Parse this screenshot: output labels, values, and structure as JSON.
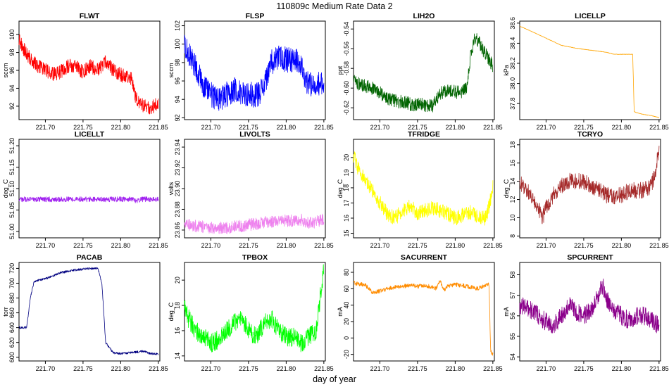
{
  "suptitle": "110809c   Medium Rate Data 2",
  "xlabel": "day of year",
  "chart_data": [
    {
      "type": "line",
      "title": "FLWT",
      "ylabel": "sccm",
      "color": "#ff0000",
      "xlim": [
        221.665,
        221.852
      ],
      "ylim": [
        90.5,
        101.5
      ],
      "xticks": [
        "221.70",
        "221.75",
        "221.80",
        "221.85"
      ],
      "yticks": [
        "92",
        "94",
        "96",
        "98",
        "100"
      ],
      "x": [
        221.665,
        221.67,
        221.68,
        221.69,
        221.7,
        221.71,
        221.72,
        221.73,
        221.74,
        221.75,
        221.76,
        221.77,
        221.78,
        221.79,
        221.8,
        221.81,
        221.815,
        221.82,
        221.825,
        221.83,
        221.84,
        221.85
      ],
      "y": [
        99.5,
        98.5,
        97.3,
        96.5,
        96.0,
        95.6,
        95.8,
        96.5,
        96.5,
        95.8,
        96.5,
        96.0,
        97.0,
        96.0,
        95.5,
        95.2,
        95.0,
        93.0,
        92.3,
        92.0,
        91.7,
        92.5
      ],
      "noise": 1.6
    },
    {
      "type": "line",
      "title": "FLSP",
      "ylabel": "sccm",
      "color": "#0000ff",
      "xlim": [
        221.665,
        221.852
      ],
      "ylim": [
        91.8,
        102.5
      ],
      "xticks": [
        "221.70",
        "221.75",
        "221.80",
        "221.85"
      ],
      "yticks": [
        "92",
        "94",
        "96",
        "98",
        "100",
        "102"
      ],
      "x": [
        221.665,
        221.67,
        221.68,
        221.69,
        221.7,
        221.71,
        221.72,
        221.73,
        221.74,
        221.75,
        221.76,
        221.77,
        221.775,
        221.78,
        221.79,
        221.8,
        221.81,
        221.82,
        221.825,
        221.83,
        221.84,
        221.85
      ],
      "y": [
        100.0,
        99.0,
        97.5,
        95.5,
        94.5,
        94.0,
        94.5,
        95.0,
        94.8,
        94.5,
        94.5,
        95.0,
        96.5,
        98.0,
        98.5,
        98.3,
        98.4,
        98.0,
        96.0,
        95.5,
        95.5,
        96.0
      ],
      "noise": 2.8
    },
    {
      "type": "line",
      "title": "LIH2O",
      "ylabel": "ppt",
      "color": "#006400",
      "xlim": [
        221.665,
        221.852
      ],
      "ylim": [
        -0.632,
        -0.532
      ],
      "xticks": [
        "221.70",
        "221.75",
        "221.80",
        "221.85"
      ],
      "yticks": [
        "-0.62",
        "-0.60",
        "-0.58",
        "-0.56",
        "-0.54"
      ],
      "x": [
        221.665,
        221.67,
        221.68,
        221.69,
        221.7,
        221.71,
        221.72,
        221.73,
        221.74,
        221.75,
        221.76,
        221.77,
        221.78,
        221.79,
        221.8,
        221.81,
        221.815,
        221.82,
        221.825,
        221.83,
        221.84,
        221.85
      ],
      "y": [
        -0.59,
        -0.595,
        -0.598,
        -0.6,
        -0.605,
        -0.61,
        -0.613,
        -0.614,
        -0.616,
        -0.617,
        -0.617,
        -0.618,
        -0.605,
        -0.603,
        -0.604,
        -0.603,
        -0.6,
        -0.57,
        -0.55,
        -0.552,
        -0.565,
        -0.578
      ],
      "noise": 0.014
    },
    {
      "type": "line",
      "title": "LICELLP",
      "ylabel": "kPa",
      "color": "#ffa500",
      "xlim": [
        221.665,
        221.852
      ],
      "ylim": [
        37.64,
        38.62
      ],
      "xticks": [
        "221.70",
        "221.75",
        "221.80",
        "221.85"
      ],
      "yticks": [
        "37.8",
        "38.0",
        "38.2",
        "38.4",
        "38.6"
      ],
      "x": [
        221.665,
        221.68,
        221.7,
        221.72,
        221.74,
        221.76,
        221.78,
        221.79,
        221.8,
        221.815,
        221.817,
        221.82,
        221.83,
        221.84,
        221.85
      ],
      "y": [
        38.57,
        38.52,
        38.45,
        38.38,
        38.35,
        38.33,
        38.31,
        38.29,
        38.29,
        38.29,
        37.72,
        37.71,
        37.69,
        37.68,
        37.66
      ],
      "noise": 0.004
    },
    {
      "type": "line",
      "title": "LICELLT",
      "ylabel": "deg_C",
      "color": "#a020f0",
      "xlim": [
        221.665,
        221.852
      ],
      "ylim": [
        50.985,
        51.215
      ],
      "xticks": [
        "221.70",
        "221.75",
        "221.80",
        "221.85"
      ],
      "yticks": [
        "51.00",
        "51.05",
        "51.10",
        "51.15",
        "51.20"
      ],
      "x": [
        221.665,
        221.7,
        221.75,
        221.8,
        221.815,
        221.82,
        221.83,
        221.85
      ],
      "y": [
        51.075,
        51.075,
        51.075,
        51.075,
        51.075,
        51.072,
        51.075,
        51.075
      ],
      "noise": 0.012
    },
    {
      "type": "line",
      "title": "LIVOLTS",
      "ylabel": "volts",
      "color": "#ee82ee",
      "xlim": [
        221.665,
        221.852
      ],
      "ylim": [
        23.8525,
        23.9475
      ],
      "xticks": [
        "221.70",
        "221.75",
        "221.80",
        "221.85"
      ],
      "yticks": [
        "23.86",
        "23.88",
        "23.90",
        "23.92",
        "23.94"
      ],
      "x": [
        221.665,
        221.68,
        221.7,
        221.72,
        221.74,
        221.76,
        221.78,
        221.8,
        221.82,
        221.83,
        221.84,
        221.85
      ],
      "y": [
        23.866,
        23.864,
        23.862,
        23.862,
        23.864,
        23.866,
        23.868,
        23.869,
        23.87,
        23.866,
        23.868,
        23.87
      ],
      "noise": 0.012
    },
    {
      "type": "line",
      "title": "TFRIDGE",
      "ylabel": "deg_C",
      "color": "#ffff00",
      "xlim": [
        221.665,
        221.852
      ],
      "ylim": [
        14.7,
        21.2
      ],
      "xticks": [
        "221.70",
        "221.75",
        "221.80",
        "221.85"
      ],
      "yticks": [
        "15",
        "16",
        "17",
        "18",
        "19",
        "20"
      ],
      "x": [
        221.665,
        221.67,
        221.68,
        221.69,
        221.7,
        221.71,
        221.72,
        221.73,
        221.74,
        221.75,
        221.76,
        221.77,
        221.78,
        221.79,
        221.8,
        221.81,
        221.82,
        221.83,
        221.84,
        221.845,
        221.85
      ],
      "y": [
        20.2,
        19.4,
        18.5,
        17.8,
        17.0,
        16.3,
        16.0,
        16.5,
        16.8,
        16.3,
        16.5,
        16.7,
        16.5,
        16.3,
        16.0,
        16.2,
        16.4,
        16.0,
        16.0,
        16.8,
        18.0
      ],
      "noise": 1.0
    },
    {
      "type": "line",
      "title": "TCRYO",
      "ylabel": "deg_C",
      "color": "#a52a2a",
      "xlim": [
        221.665,
        221.852
      ],
      "ylim": [
        7.8,
        18.6
      ],
      "xticks": [
        "221.70",
        "221.75",
        "221.80",
        "221.85"
      ],
      "yticks": [
        "8",
        "10",
        "12",
        "14",
        "16",
        "18"
      ],
      "x": [
        221.665,
        221.67,
        221.68,
        221.69,
        221.695,
        221.7,
        221.71,
        221.72,
        221.73,
        221.74,
        221.75,
        221.76,
        221.77,
        221.78,
        221.79,
        221.8,
        221.81,
        221.82,
        221.83,
        221.84,
        221.845,
        221.85
      ],
      "y": [
        14.0,
        13.2,
        12.5,
        11.0,
        10.0,
        11.0,
        12.5,
        13.5,
        14.0,
        14.0,
        14.0,
        13.5,
        13.0,
        12.5,
        12.3,
        12.5,
        13.0,
        13.0,
        13.0,
        13.5,
        15.0,
        17.5
      ],
      "noise": 1.8
    },
    {
      "type": "line",
      "title": "PACAB",
      "ylabel": "torr",
      "color": "#000080",
      "xlim": [
        221.665,
        221.852
      ],
      "ylim": [
        595,
        728
      ],
      "xticks": [
        "221.70",
        "221.75",
        "221.80",
        "221.85"
      ],
      "yticks": [
        "600",
        "620",
        "640",
        "660",
        "680",
        "700",
        "720"
      ],
      "x": [
        221.665,
        221.675,
        221.677,
        221.68,
        221.685,
        221.69,
        221.7,
        221.71,
        221.72,
        221.73,
        221.74,
        221.75,
        221.76,
        221.77,
        221.775,
        221.78,
        221.79,
        221.8,
        221.81,
        221.82,
        221.83,
        221.84,
        221.85
      ],
      "y": [
        640,
        640,
        655,
        680,
        702,
        704,
        706,
        710,
        714,
        716,
        718,
        719,
        720,
        720,
        700,
        620,
        606,
        605,
        606,
        607,
        608,
        605,
        604
      ],
      "noise": 3.0
    },
    {
      "type": "line",
      "title": "TPBOX",
      "ylabel": "deg_C",
      "color": "#00ff00",
      "xlim": [
        221.665,
        221.852
      ],
      "ylim": [
        13.6,
        21.4
      ],
      "xticks": [
        "221.70",
        "221.75",
        "221.80",
        "221.85"
      ],
      "yticks": [
        "14",
        "16",
        "18",
        "20"
      ],
      "x": [
        221.665,
        221.67,
        221.68,
        221.69,
        221.7,
        221.71,
        221.72,
        221.73,
        221.74,
        221.75,
        221.76,
        221.77,
        221.78,
        221.79,
        221.8,
        221.81,
        221.82,
        221.83,
        221.84,
        221.845,
        221.85
      ],
      "y": [
        18.0,
        17.0,
        16.0,
        15.5,
        15.0,
        15.3,
        16.0,
        16.5,
        17.0,
        16.0,
        15.5,
        16.5,
        17.0,
        16.0,
        15.5,
        15.5,
        15.0,
        15.5,
        16.0,
        18.5,
        21.0
      ],
      "noise": 1.5
    },
    {
      "type": "line",
      "title": "SACURRENT",
      "ylabel": "mA",
      "color": "#ff8c00",
      "xlim": [
        221.665,
        221.852
      ],
      "ylim": [
        -28,
        92
      ],
      "xticks": [
        "221.70",
        "221.75",
        "221.80",
        "221.85"
      ],
      "yticks": [
        "-20",
        "0",
        "20",
        "40",
        "60",
        "80"
      ],
      "x": [
        221.665,
        221.67,
        221.68,
        221.69,
        221.7,
        221.71,
        221.72,
        221.73,
        221.74,
        221.75,
        221.76,
        221.77,
        221.775,
        221.78,
        221.785,
        221.79,
        221.8,
        221.81,
        221.82,
        221.83,
        221.84,
        221.845,
        221.847,
        221.85
      ],
      "y": [
        67,
        66,
        65,
        55,
        57,
        60,
        62,
        63,
        64,
        63,
        64,
        62,
        60,
        70,
        58,
        63,
        65,
        64,
        62,
        60,
        64,
        65,
        -15,
        -20
      ],
      "noise": 5.0
    },
    {
      "type": "line",
      "title": "SPCURRENT",
      "ylabel": "mA",
      "color": "#8b008b",
      "xlim": [
        221.665,
        221.852
      ],
      "ylim": [
        53.8,
        58.6
      ],
      "xticks": [
        "221.70",
        "221.75",
        "221.80",
        "221.85"
      ],
      "yticks": [
        "54",
        "55",
        "56",
        "57",
        "58"
      ],
      "x": [
        221.665,
        221.67,
        221.68,
        221.69,
        221.7,
        221.71,
        221.72,
        221.73,
        221.74,
        221.75,
        221.76,
        221.77,
        221.775,
        221.78,
        221.79,
        221.8,
        221.81,
        221.82,
        221.83,
        221.84,
        221.85
      ],
      "y": [
        56.3,
        56.5,
        56.3,
        56.0,
        55.7,
        55.5,
        56.0,
        56.5,
        56.2,
        56.0,
        56.3,
        57.0,
        57.5,
        56.8,
        56.3,
        56.0,
        55.8,
        56.0,
        56.0,
        55.8,
        55.5
      ],
      "noise": 0.9
    }
  ]
}
